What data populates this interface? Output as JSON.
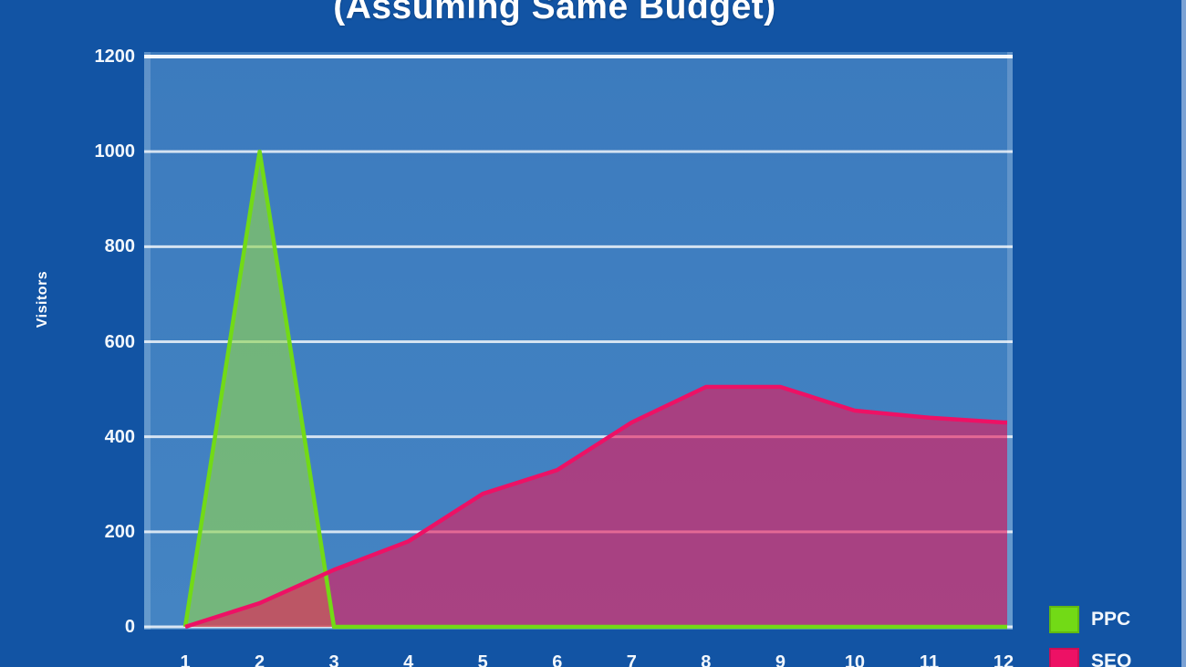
{
  "title": "(Assuming Same Budget)",
  "colors": {
    "canvas_bg": "#1254a4",
    "plot_bg_top": "#3c7bbe",
    "plot_bg_bottom": "#4484c3",
    "gridline": "#ffffff",
    "right_edge_strip": "#7ba2d4",
    "text": "#ffffff"
  },
  "chart_data": {
    "type": "area",
    "title": "(Assuming Same Budget)",
    "xlabel": "",
    "ylabel": "Visitors",
    "categories": [
      1,
      2,
      3,
      4,
      5,
      6,
      7,
      8,
      9,
      10,
      11,
      12
    ],
    "y_ticks": [
      0,
      200,
      400,
      600,
      800,
      1000,
      1200
    ],
    "ylim": [
      0,
      1200
    ],
    "grid": true,
    "legend_position": "bottom-right",
    "series": [
      {
        "name": "PPC",
        "color": "#72da16",
        "fill": "rgba(145,213,80,0.62)",
        "values": [
          0,
          1000,
          0,
          0,
          0,
          0,
          0,
          0,
          0,
          0,
          0,
          0
        ]
      },
      {
        "name": "SEO",
        "color": "#ed1165",
        "fill": "rgba(236,21,86,0.6)",
        "values": [
          0,
          50,
          120,
          180,
          280,
          330,
          430,
          505,
          505,
          455,
          440,
          430
        ]
      }
    ]
  }
}
